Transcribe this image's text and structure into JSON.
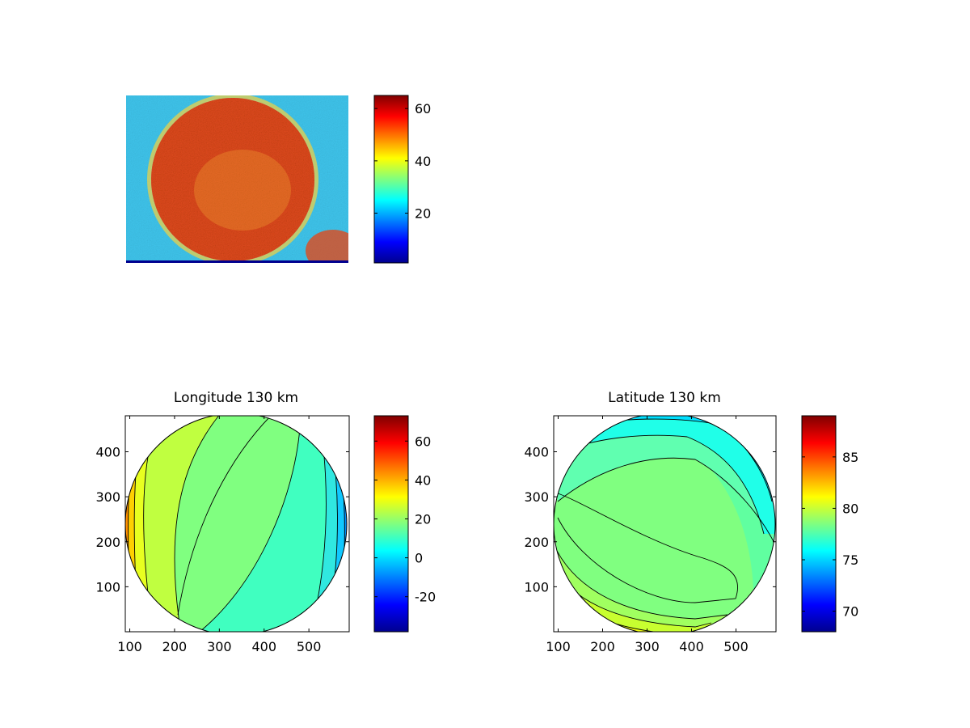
{
  "chart_data": [
    {
      "type": "heatmap",
      "title": "",
      "xlabel": "",
      "ylabel": "",
      "axes_visible": false,
      "description_values": {
        "disk_value_range": [
          50,
          65
        ],
        "background_value_range": [
          15,
          35
        ]
      },
      "colorbar": {
        "colormap": "jet",
        "range": [
          1,
          65
        ],
        "ticks": [
          20,
          40,
          60
        ]
      }
    },
    {
      "type": "heatmap",
      "title": "Longitude 130 km",
      "xlabel": "",
      "ylabel": "",
      "xlim": [
        90,
        590
      ],
      "ylim": [
        0,
        480
      ],
      "xticks": [
        100,
        200,
        300,
        400,
        500
      ],
      "yticks": [
        100,
        200,
        300,
        400
      ],
      "disk": {
        "center": [
          340,
          240
        ],
        "radius": 245
      },
      "field": "longitude",
      "colorbar": {
        "colormap": "jet",
        "range": [
          -38,
          73
        ],
        "ticks": [
          -20,
          0,
          20,
          40,
          60
        ]
      }
    },
    {
      "type": "heatmap",
      "title": "Latitude 130 km",
      "xlabel": "",
      "ylabel": "",
      "xlim": [
        90,
        590
      ],
      "ylim": [
        0,
        480
      ],
      "xticks": [
        100,
        200,
        300,
        400,
        500
      ],
      "yticks": [
        100,
        200,
        300,
        400
      ],
      "disk": {
        "center": [
          340,
          240
        ],
        "radius": 245
      },
      "field": "latitude",
      "colorbar": {
        "colormap": "jet",
        "range": [
          68,
          89
        ],
        "ticks": [
          70,
          75,
          80,
          85
        ]
      }
    }
  ]
}
